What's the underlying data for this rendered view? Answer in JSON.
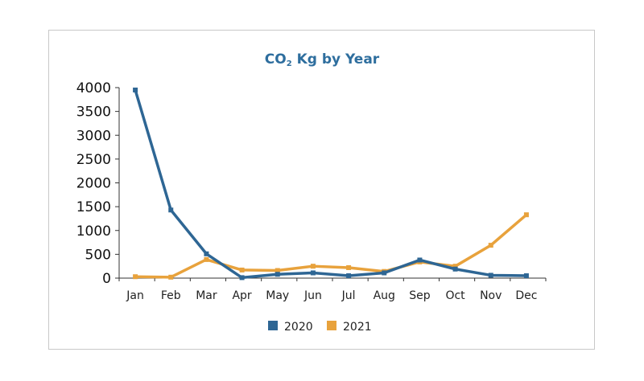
{
  "chart_data": {
    "type": "line",
    "title_main": "CO",
    "title_sub": "2",
    "title_rest": " Kg  by Year",
    "categories": [
      "Jan",
      "Feb",
      "Mar",
      "Apr",
      "May",
      "Jun",
      "Jul",
      "Aug",
      "Sep",
      "Oct",
      "Nov",
      "Dec"
    ],
    "yticks": [
      "0",
      "500",
      "1000",
      "1500",
      "2000",
      "2500",
      "3000",
      "3500",
      "4000"
    ],
    "ylim": [
      0,
      4000
    ],
    "grid": false,
    "legend_position": "bottom",
    "series": [
      {
        "name": "2020",
        "color": "#2e6694",
        "values": [
          3950,
          1430,
          510,
          10,
          80,
          110,
          50,
          110,
          380,
          190,
          60,
          50
        ]
      },
      {
        "name": "2021",
        "color": "#e8a23c",
        "values": [
          30,
          20,
          390,
          170,
          160,
          250,
          220,
          140,
          340,
          250,
          690,
          1330
        ]
      }
    ]
  }
}
